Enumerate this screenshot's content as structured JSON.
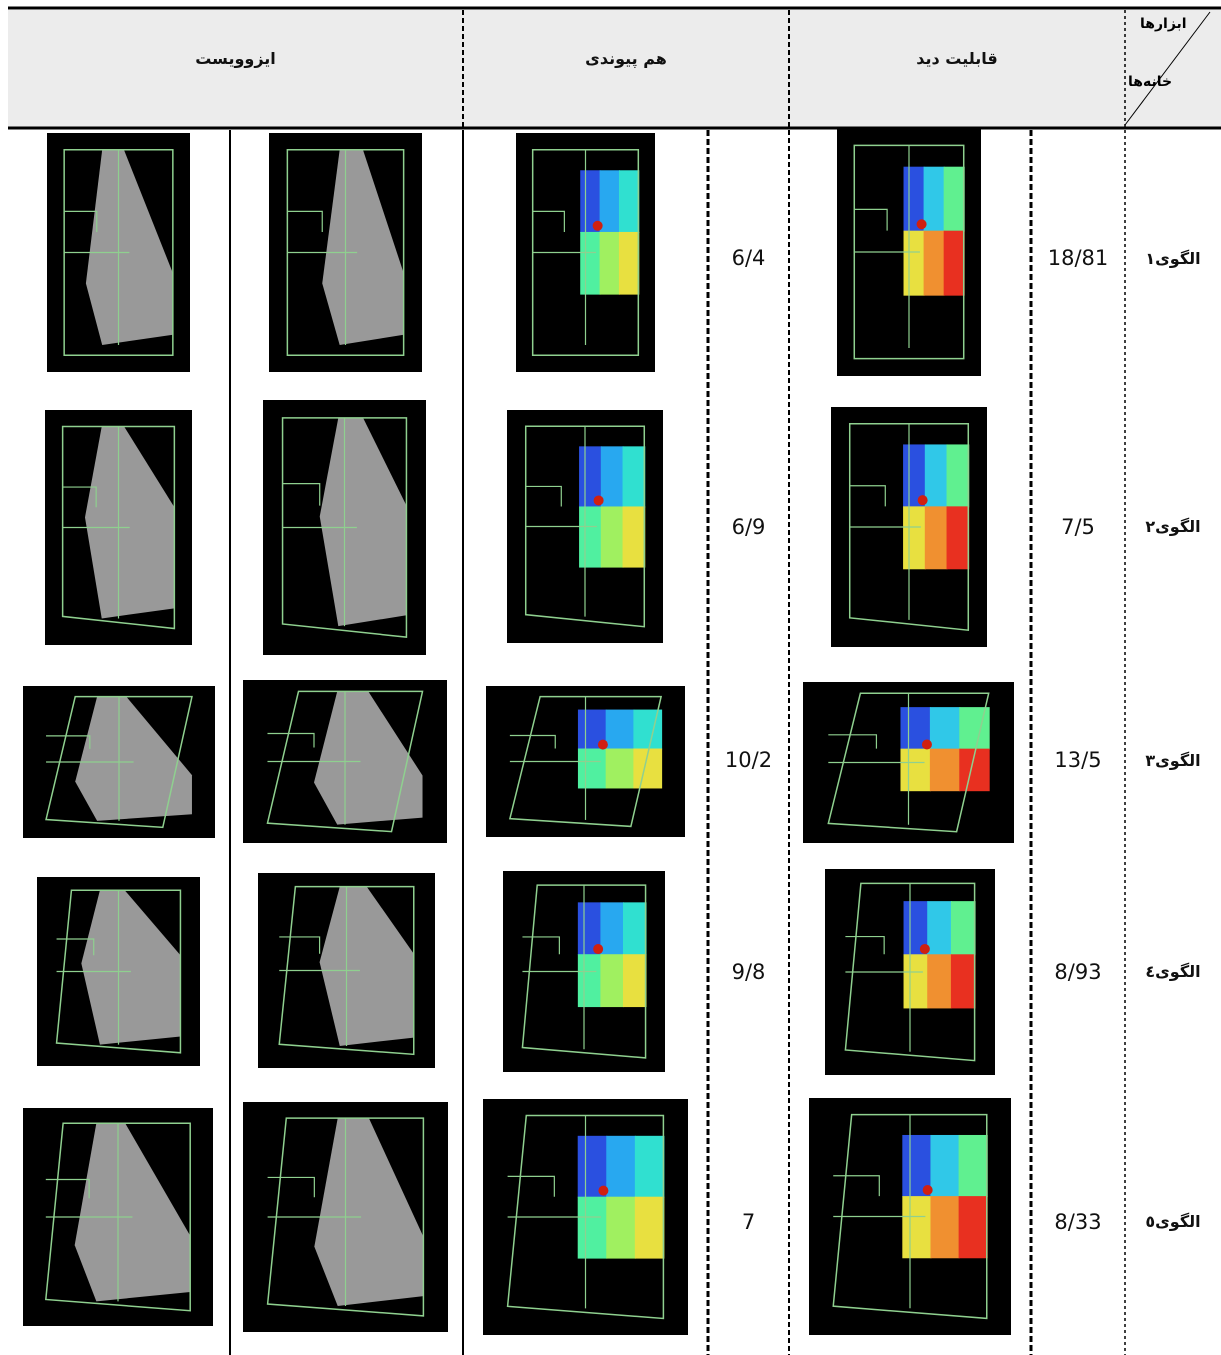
{
  "header": {
    "corner_top": "ابزارها",
    "corner_bottom": "خانه‌ها",
    "visibility": "قابلیت دید",
    "connectivity": "هم پیوندی",
    "isovist": "ایزوویست"
  },
  "rows": [
    {
      "label": "الگوی۱",
      "visibility": "18/81",
      "connectivity": "6/4"
    },
    {
      "label": "الگوی۲",
      "visibility": "7/5",
      "connectivity": "6/9"
    },
    {
      "label": "الگوی۳",
      "visibility": "13/5",
      "connectivity": "10/2"
    },
    {
      "label": "الگوی٤",
      "visibility": "8/93",
      "connectivity": "9/8"
    },
    {
      "label": "الگوی٥",
      "visibility": "8/33",
      "connectivity": "7"
    }
  ]
}
